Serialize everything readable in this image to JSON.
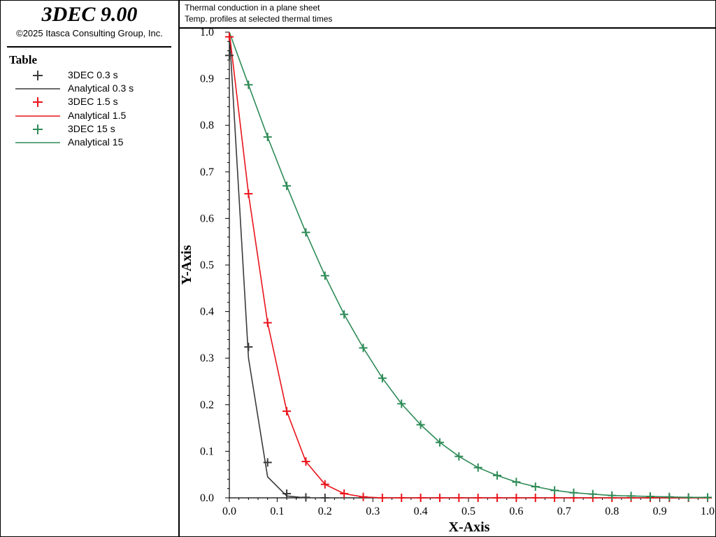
{
  "app": {
    "title": "3DEC 9.00",
    "copyright": "©2025 Itasca Consulting Group, Inc."
  },
  "header": {
    "line1": "Thermal conduction in a plane sheet",
    "line2": "Temp. profiles at selected thermal times"
  },
  "legend": {
    "title": "Table",
    "items": [
      {
        "label": "3DEC 0.3 s",
        "kind": "marker",
        "color": "#3a3a3a"
      },
      {
        "label": "Analytical 0.3 s",
        "kind": "line",
        "color": "#3a3a3a"
      },
      {
        "label": "3DEC 1.5 s",
        "kind": "marker",
        "color": "#e8141b"
      },
      {
        "label": "Analytical 1.5",
        "kind": "line",
        "color": "#e8141b"
      },
      {
        "label": "3DEC 15 s",
        "kind": "marker",
        "color": "#2e8b57"
      },
      {
        "label": "Analytical 15",
        "kind": "line",
        "color": "#2e8b57"
      }
    ]
  },
  "chart_data": {
    "type": "line",
    "xlabel": "X-Axis",
    "ylabel": "Y-Axis",
    "xlim": [
      0,
      1
    ],
    "ylim": [
      0,
      1
    ],
    "xticks": [
      "0.0",
      "0.1",
      "0.2",
      "0.3",
      "0.4",
      "0.5",
      "0.6",
      "0.7",
      "0.8",
      "0.9",
      "1.0"
    ],
    "yticks": [
      "0.0",
      "0.1",
      "0.2",
      "0.3",
      "0.4",
      "0.5",
      "0.6",
      "0.7",
      "0.8",
      "0.9",
      "1.0"
    ],
    "grid": false,
    "legend_position": "left-panel",
    "series": [
      {
        "name": "3DEC 0.3 s",
        "kind": "marker",
        "color": "#3a3a3a",
        "x": [
          0.0,
          0.04,
          0.08,
          0.12,
          0.16,
          0.2
        ],
        "y": [
          0.95,
          0.324,
          0.076,
          0.009,
          0.001,
          0.0
        ]
      },
      {
        "name": "Analytical 0.3 s",
        "kind": "line",
        "color": "#3a3a3a",
        "x": [
          0.0,
          0.04,
          0.08,
          0.12,
          0.16,
          0.2,
          0.24,
          0.28,
          0.32,
          0.36,
          0.4,
          0.44,
          0.48,
          0.52,
          0.56,
          0.6,
          0.64,
          0.68,
          0.72,
          0.76,
          0.8,
          0.84,
          0.88,
          0.92,
          0.96,
          1.0
        ],
        "y": [
          1.0,
          0.3,
          0.045,
          0.004,
          0.0,
          0,
          0,
          0,
          0,
          0,
          0,
          0,
          0,
          0,
          0,
          0,
          0,
          0,
          0,
          0,
          0,
          0,
          0,
          0,
          0,
          0
        ]
      },
      {
        "name": "3DEC 1.5 s",
        "kind": "marker",
        "color": "#e8141b",
        "x": [
          0.0,
          0.04,
          0.08,
          0.12,
          0.16,
          0.2,
          0.24,
          0.28,
          0.32,
          0.36,
          0.4,
          0.44,
          0.48,
          0.52,
          0.56,
          0.6,
          0.64,
          0.68,
          0.72,
          0.76,
          0.8,
          0.84,
          0.88,
          0.92,
          0.96,
          1.0
        ],
        "y": [
          0.99,
          0.653,
          0.376,
          0.186,
          0.078,
          0.029,
          0.009,
          0.002,
          0.0,
          0,
          0,
          0,
          0,
          0,
          0,
          0,
          0,
          0,
          0,
          0,
          0,
          0,
          0,
          0,
          0,
          0
        ]
      },
      {
        "name": "Analytical 1.5",
        "kind": "line",
        "color": "#e8141b",
        "x": [
          0.0,
          0.04,
          0.08,
          0.12,
          0.16,
          0.2,
          0.24,
          0.28,
          0.32,
          0.36,
          0.4,
          0.44,
          0.48,
          0.52,
          0.56,
          0.6,
          0.64,
          0.68,
          0.72,
          0.76,
          0.8,
          0.84,
          0.88,
          0.92,
          0.96,
          1.0
        ],
        "y": [
          1.0,
          0.653,
          0.376,
          0.186,
          0.078,
          0.029,
          0.009,
          0.002,
          0.0,
          0,
          0,
          0,
          0,
          0,
          0,
          0,
          0,
          0,
          0,
          0,
          0,
          0,
          0,
          0,
          0,
          0
        ]
      },
      {
        "name": "3DEC 15 s",
        "kind": "marker",
        "color": "#2e8b57",
        "x": [
          0.04,
          0.08,
          0.12,
          0.16,
          0.2,
          0.24,
          0.28,
          0.32,
          0.36,
          0.4,
          0.44,
          0.48,
          0.52,
          0.56,
          0.6,
          0.64,
          0.68,
          0.72,
          0.76,
          0.8,
          0.84,
          0.88,
          0.92,
          0.96,
          1.0
        ],
        "y": [
          0.887,
          0.775,
          0.67,
          0.57,
          0.477,
          0.394,
          0.322,
          0.257,
          0.202,
          0.157,
          0.119,
          0.089,
          0.065,
          0.048,
          0.034,
          0.024,
          0.016,
          0.011,
          0.008,
          0.005,
          0.004,
          0.003,
          0.002,
          0.001,
          0.001
        ]
      },
      {
        "name": "Analytical 15",
        "kind": "line",
        "color": "#2e8b57",
        "x": [
          0.0,
          0.04,
          0.08,
          0.12,
          0.16,
          0.2,
          0.24,
          0.28,
          0.32,
          0.36,
          0.4,
          0.44,
          0.48,
          0.52,
          0.56,
          0.6,
          0.64,
          0.68,
          0.72,
          0.76,
          0.8,
          0.84,
          0.88,
          0.92,
          0.96,
          1.0
        ],
        "y": [
          1.0,
          0.887,
          0.775,
          0.67,
          0.57,
          0.477,
          0.394,
          0.322,
          0.257,
          0.202,
          0.157,
          0.119,
          0.089,
          0.065,
          0.048,
          0.034,
          0.024,
          0.016,
          0.011,
          0.008,
          0.005,
          0.004,
          0.003,
          0.002,
          0.001,
          0.001
        ]
      }
    ]
  }
}
